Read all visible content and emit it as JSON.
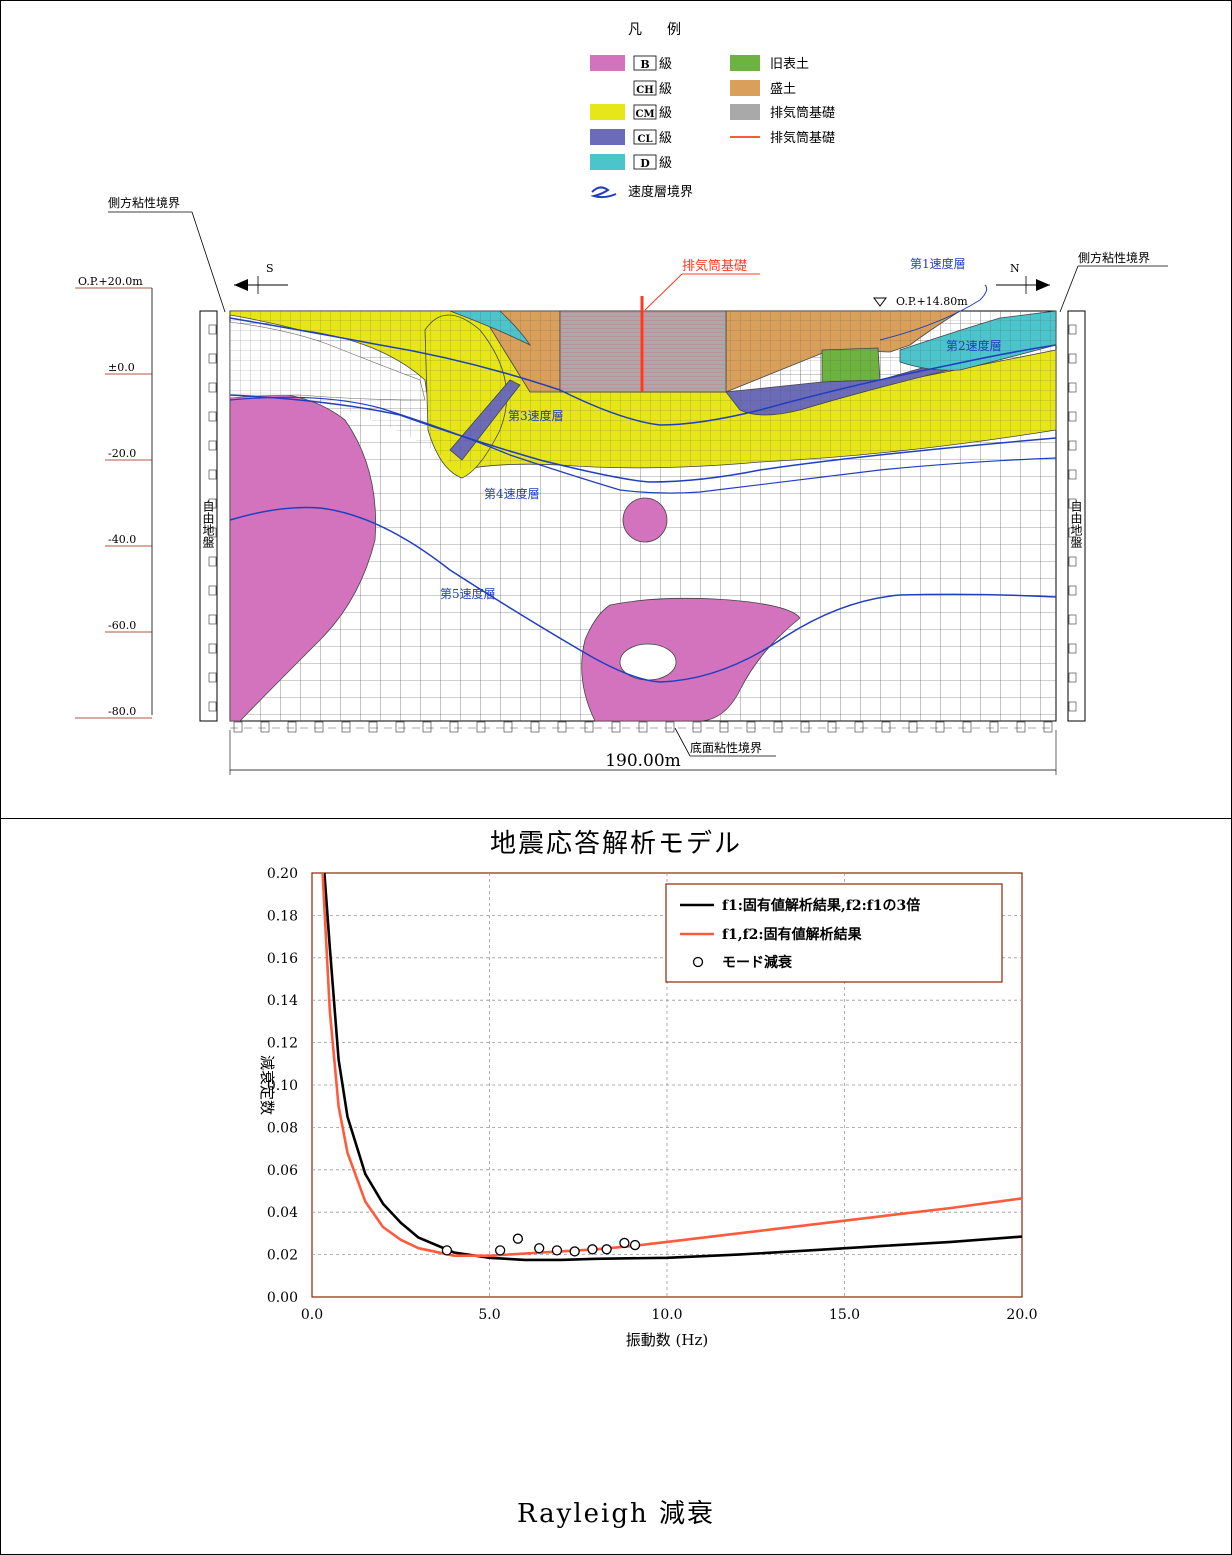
{
  "model": {
    "legend_title_a": "凡",
    "legend_title_b": "例",
    "legend_items": [
      {
        "code": "B",
        "text": "級",
        "color": "#d473bd"
      },
      {
        "code": "CH",
        "text": "級",
        "color": "#ffffff"
      },
      {
        "code": "CM",
        "text": "級",
        "color": "#e6e619"
      },
      {
        "code": "CL",
        "text": "級",
        "color": "#6b6bb8"
      },
      {
        "code": "D",
        "text": "級",
        "color": "#4cc4cc"
      }
    ],
    "legend_items_right": [
      {
        "text": "旧表土",
        "color": "#6db33f"
      },
      {
        "text": "盛土",
        "color": "#d9a05b"
      },
      {
        "text": "排気筒基礎",
        "color": "#a9a9a9"
      },
      {
        "text": "排気筒基礎",
        "color": "#ff5a3c"
      }
    ],
    "legend_boundary": "速度層境界",
    "side_boundary_left": "側方粘性境界",
    "side_boundary_right": "側方粘性境界",
    "dir_s": "S",
    "dir_n": "N",
    "stack_label": "排気筒基礎",
    "level_label": "O.P.+14.80m",
    "layers": [
      "第1速度層",
      "第2速度層",
      "第3速度層",
      "第4速度層",
      "第5速度層"
    ],
    "elevations": [
      "O.P.+20.0m",
      "±0.0",
      "-20.0",
      "-40.0",
      "-60.0",
      "-80.0"
    ],
    "free_field_left": "自由地盤",
    "free_field_right": "自由地盤",
    "bottom_boundary": "底面粘性境界",
    "width_label": "190.00m",
    "caption": "地震応答解析モデル"
  },
  "chart_data": {
    "type": "line",
    "xlabel": "振動数 (Hz)",
    "ylabel": "減衰定数",
    "xlim": [
      0,
      20
    ],
    "ylim": [
      0,
      0.2
    ],
    "xticks": [
      "0.0",
      "5.0",
      "10.0",
      "15.0",
      "20.0"
    ],
    "yticks": [
      "0.00",
      "0.02",
      "0.04",
      "0.06",
      "0.08",
      "0.10",
      "0.12",
      "0.14",
      "0.16",
      "0.18",
      "0.20"
    ],
    "grid": true,
    "legend_position": "top-right",
    "series": [
      {
        "name": "f1:固有値解析結果,f2:f1の3倍",
        "color": "#000000",
        "x": [
          0.35,
          0.5,
          0.75,
          1.0,
          1.5,
          2.0,
          2.5,
          3.0,
          4.0,
          5.0,
          6.0,
          7.0,
          8.0,
          10.0,
          12.0,
          14.0,
          16.0,
          18.0,
          20.0
        ],
        "y": [
          0.2,
          0.165,
          0.112,
          0.085,
          0.058,
          0.044,
          0.035,
          0.028,
          0.021,
          0.0185,
          0.0175,
          0.0175,
          0.018,
          0.0185,
          0.02,
          0.022,
          0.024,
          0.026,
          0.0285
        ]
      },
      {
        "name": "f1,f2:固有値解析結果",
        "color": "#ff5a3c",
        "x": [
          0.3,
          0.5,
          0.75,
          1.0,
          1.5,
          2.0,
          2.5,
          3.0,
          4.0,
          5.0,
          6.0,
          7.0,
          8.0,
          9.0,
          10.0,
          12.0,
          14.0,
          16.0,
          18.0,
          20.0
        ],
        "y": [
          0.2,
          0.135,
          0.09,
          0.068,
          0.045,
          0.033,
          0.027,
          0.023,
          0.0195,
          0.0195,
          0.0205,
          0.0215,
          0.0225,
          0.024,
          0.026,
          0.03,
          0.034,
          0.038,
          0.042,
          0.0465
        ]
      },
      {
        "name": "モード減衰",
        "type": "scatter",
        "x": [
          3.8,
          5.3,
          5.8,
          6.4,
          6.9,
          7.4,
          7.9,
          8.3,
          8.8,
          9.1
        ],
        "y": [
          0.022,
          0.022,
          0.0275,
          0.023,
          0.022,
          0.0215,
          0.0225,
          0.0225,
          0.0255,
          0.0245
        ]
      }
    ],
    "caption": "Rayleigh 減衰"
  }
}
